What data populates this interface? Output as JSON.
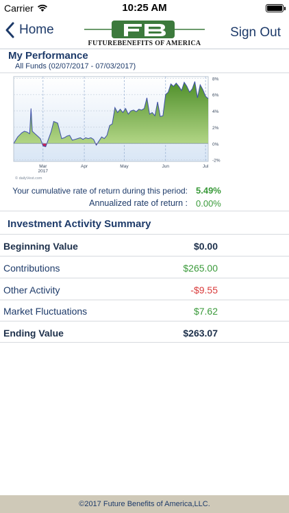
{
  "status_bar": {
    "carrier": "Carrier",
    "time": "10:25 AM"
  },
  "nav": {
    "back_label": "Home",
    "sign_out_label": "Sign Out",
    "logo_text": "FUTUREBENEFITS OF AMERICA"
  },
  "performance": {
    "title": "My Performance",
    "subtitle": "All Funds (02/07/2017 - 07/03/2017)",
    "cumulative_label": "Your cumulative rate of return during this period:",
    "cumulative_value": "5.49%",
    "annualized_label": "Annualized rate of return :",
    "annualized_value": "0.00%",
    "chart_credit": "© dailyVest.com"
  },
  "summary": {
    "title": "Investment Activity Summary",
    "rows": [
      {
        "label": "Beginning Value",
        "value": "$0.00"
      },
      {
        "label": "Contributions",
        "value": "$265.00"
      },
      {
        "label": "Other Activity",
        "value": "-$9.55"
      },
      {
        "label": "Market Fluctuations",
        "value": "$7.62"
      },
      {
        "label": "Ending Value",
        "value": "$263.07"
      }
    ]
  },
  "footer": {
    "text": "©2017 Future Benefits of America,LLC."
  },
  "colors": {
    "navy": "#1d3a69",
    "positive": "#3a9a3a",
    "negative": "#d93a3a",
    "footer_bg": "#cfc9b8"
  },
  "chart_data": {
    "type": "area",
    "x_tick_labels": [
      "Mar\n2017",
      "Apr",
      "May",
      "Jun",
      "Jul"
    ],
    "y_tick_labels": [
      "8%",
      "6%",
      "4%",
      "2%",
      "0%",
      "-2%"
    ],
    "ylim": [
      -2.2,
      8.2
    ],
    "grid": true,
    "x_days": [
      0,
      3,
      6,
      8,
      10,
      12,
      13,
      14,
      16,
      18,
      20,
      22,
      24,
      26,
      28,
      30,
      33,
      36,
      38,
      40,
      42,
      44,
      46,
      48,
      50,
      52,
      54,
      56,
      58,
      60,
      62,
      64,
      66,
      68,
      70,
      72,
      74,
      76,
      78,
      80,
      82,
      84,
      86,
      88,
      90,
      92,
      94,
      96,
      98,
      100,
      102,
      104,
      106,
      108,
      110,
      112,
      114,
      116,
      118,
      120,
      122,
      124,
      126,
      128,
      130,
      132,
      134,
      136,
      138,
      140,
      142,
      144,
      146
    ],
    "values": [
      0.0,
      0.8,
      1.3,
      1.5,
      1.4,
      1.2,
      4.3,
      1.5,
      1.2,
      0.9,
      0.6,
      -0.3,
      -0.4,
      0.5,
      1.4,
      2.7,
      2.5,
      0.6,
      0.7,
      0.9,
      1.0,
      0.4,
      0.5,
      0.6,
      0.7,
      0.5,
      0.7,
      0.6,
      0.7,
      0.5,
      -0.2,
      0.3,
      0.8,
      0.6,
      1.0,
      2.2,
      2.4,
      4.4,
      3.8,
      4.2,
      3.8,
      4.3,
      3.6,
      4.0,
      4.1,
      3.9,
      4.2,
      4.1,
      4.3,
      5.6,
      3.6,
      3.8,
      3.4,
      5.1,
      3.3,
      3.4,
      6.0,
      6.3,
      7.3,
      7.0,
      7.4,
      7.0,
      6.5,
      7.5,
      7.0,
      6.3,
      6.7,
      7.6,
      5.6,
      7.2,
      6.6,
      5.8,
      5.5
    ]
  }
}
